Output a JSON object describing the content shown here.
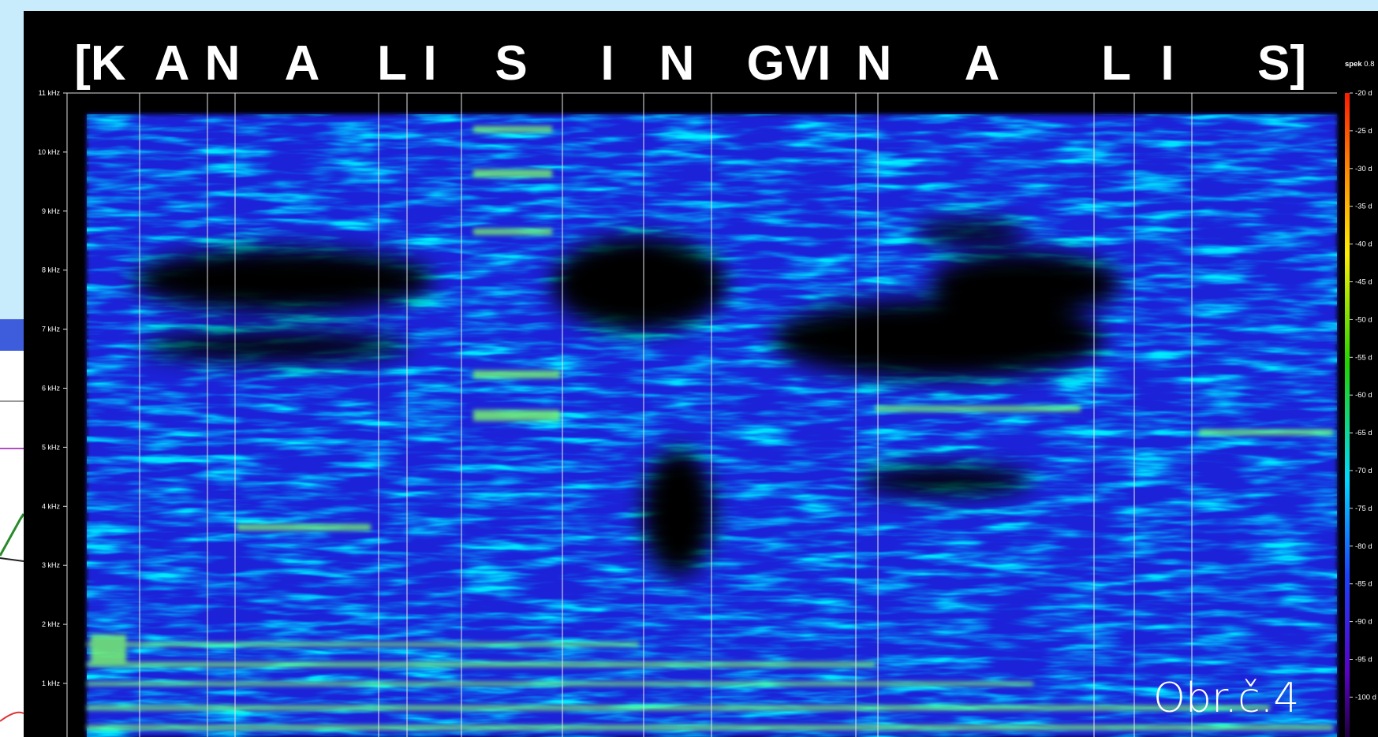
{
  "phoneme_labels": [
    "[K",
    "A",
    "N",
    "A",
    "L",
    "I",
    "S",
    "I",
    "N",
    "GVI",
    "N",
    "A",
    "L",
    "I",
    "S]"
  ],
  "frequency_labels": [
    "11 kHz",
    "10 kHz",
    "9 kHz",
    "8 kHz",
    "7 kHz",
    "6 kHz",
    "5 kHz",
    "4 kHz",
    "3 kHz",
    "2 kHz",
    "1 kHz"
  ],
  "colorbar": {
    "title": "spek",
    "subtitle": "0.8",
    "labels": [
      "-20 d",
      "-25 d",
      "-30 d",
      "-35 d",
      "-40 d",
      "-45 d",
      "-50 d",
      "-55 d",
      "-60 d",
      "-65 d",
      "-70 d",
      "-75 d",
      "-80 d",
      "-85 d",
      "-90 d",
      "-95 d",
      "-100 d"
    ]
  },
  "caption": "Obr.č.4"
}
